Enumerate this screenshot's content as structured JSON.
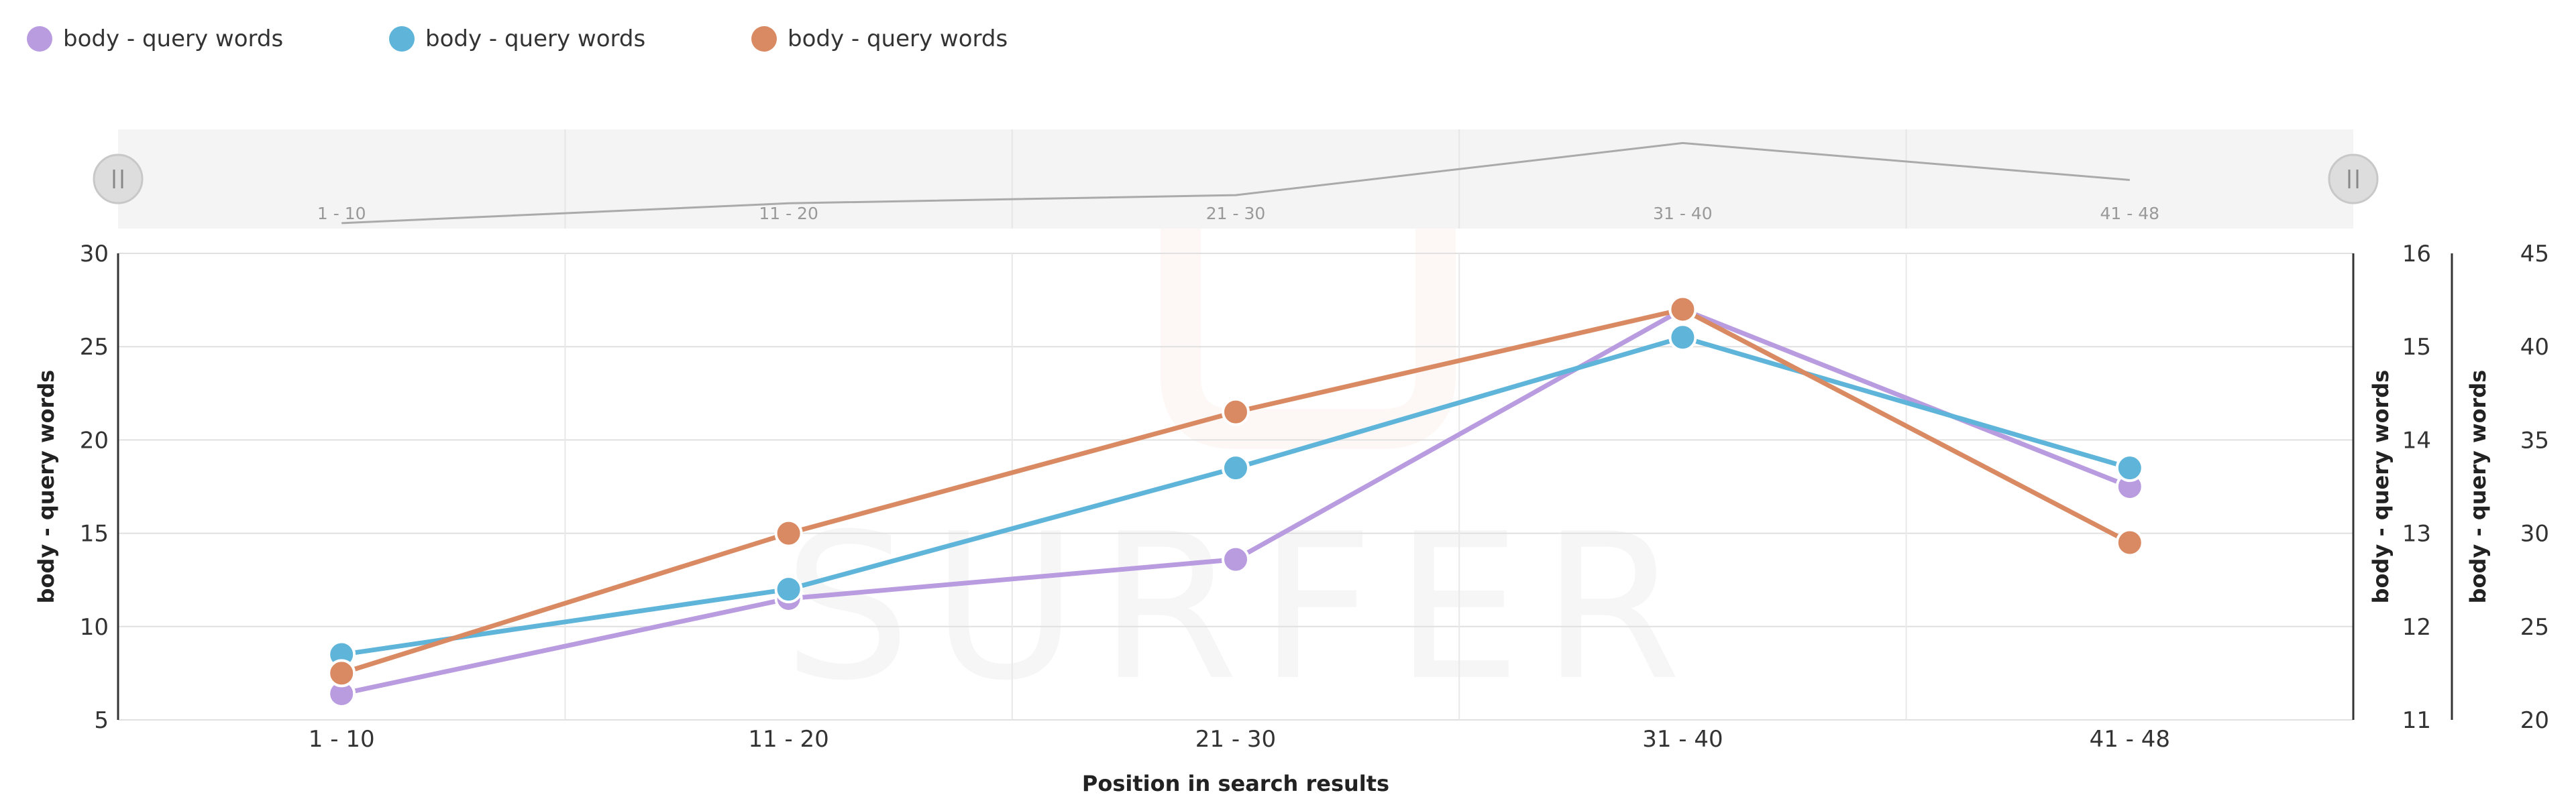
{
  "chart_data": {
    "type": "line",
    "categories": [
      "1 - 10",
      "11 - 20",
      "21 - 30",
      "31 - 40",
      "41 - 48"
    ],
    "xlabel": "Position in search results",
    "series": [
      {
        "name": "body - query words",
        "color": "#b99be0",
        "axis": "left",
        "values": [
          6.4,
          11.5,
          13.6,
          27.0,
          17.5
        ],
        "ylim": [
          5,
          30
        ],
        "ticks": [
          "5",
          "10",
          "15",
          "20",
          "25",
          "30"
        ]
      },
      {
        "name": "body - query words",
        "color": "#5fb4d9",
        "axis": "right1",
        "values": [
          11.7,
          12.4,
          13.7,
          15.1,
          13.7
        ],
        "ylim": [
          11,
          16
        ],
        "ticks": [
          "11",
          "12",
          "13",
          "14",
          "15",
          "16"
        ]
      },
      {
        "name": "body - query words",
        "color": "#d98a63",
        "axis": "right2",
        "values": [
          22.5,
          30.0,
          36.5,
          42.0,
          29.5
        ],
        "ylim": [
          20,
          45
        ],
        "ticks": [
          "20",
          "25",
          "30",
          "35",
          "40",
          "45"
        ]
      }
    ],
    "axes": {
      "left_title": "body - query words",
      "right1_title": "body - query words",
      "right2_title": "body - query words"
    },
    "grid": true,
    "legend": "top-left",
    "navigator": {
      "values": [
        6.4,
        11.5,
        13.6,
        27.0,
        17.5
      ],
      "line_color": "#aaaaaa",
      "background": "#f4f4f4",
      "tick_labels": [
        "1 - 10",
        "11 - 20",
        "21 - 30",
        "31 - 40",
        "41 - 48"
      ]
    },
    "watermark": "SURFER"
  }
}
